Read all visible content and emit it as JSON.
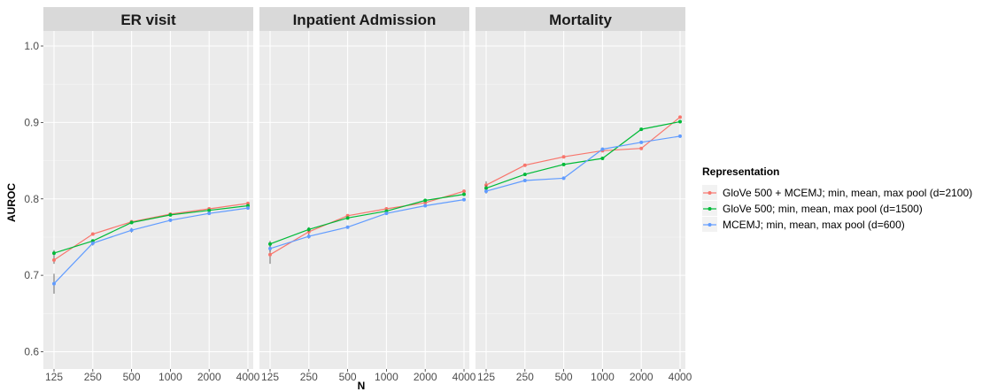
{
  "chart_data": {
    "type": "line",
    "ylabel": "AUROC",
    "xlabel": "N",
    "ylim": [
      0.6,
      1.0
    ],
    "yticks": [
      "0.6",
      "0.7",
      "0.8",
      "0.9",
      "1.0"
    ],
    "categories": [
      "125",
      "250",
      "500",
      "1000",
      "2000",
      "4000"
    ],
    "grid": true,
    "legend": {
      "title": "Representation",
      "placement": "right"
    },
    "series": [
      {
        "name": "GloVe 500 + MCEMJ; min, mean, max pool (d=2100)",
        "color": "#f8766d"
      },
      {
        "name": "GloVe 500; min, mean, max pool (d=1500)",
        "color": "#00ba38"
      },
      {
        "name": "MCEMJ; min, mean, max pool (d=600)",
        "color": "#619cff"
      }
    ],
    "panels": [
      {
        "title": "ER visit",
        "values": [
          [
            0.72,
            0.754,
            0.77,
            0.78,
            0.787,
            0.794
          ],
          [
            0.729,
            0.745,
            0.769,
            0.779,
            0.785,
            0.791
          ],
          [
            0.689,
            0.742,
            0.759,
            0.772,
            0.781,
            0.788
          ]
        ],
        "error": [
          [
            0.005,
            0.002,
            0.002,
            0.002,
            0.002,
            0.002
          ],
          [
            0.004,
            0.002,
            0.002,
            0.002,
            0.002,
            0.002
          ],
          [
            0.013,
            0.003,
            0.003,
            0.002,
            0.002,
            0.002
          ]
        ]
      },
      {
        "title": "Inpatient Admission",
        "values": [
          [
            0.727,
            0.757,
            0.778,
            0.787,
            0.795,
            0.81
          ],
          [
            0.741,
            0.76,
            0.775,
            0.784,
            0.798,
            0.806
          ],
          [
            0.735,
            0.751,
            0.763,
            0.781,
            0.791,
            0.799
          ]
        ],
        "error": [
          [
            0.012,
            0.003,
            0.002,
            0.002,
            0.002,
            0.002
          ],
          [
            0.004,
            0.003,
            0.002,
            0.002,
            0.002,
            0.002
          ],
          [
            0.004,
            0.003,
            0.002,
            0.002,
            0.002,
            0.002
          ]
        ]
      },
      {
        "title": "Mortality",
        "values": [
          [
            0.818,
            0.844,
            0.855,
            0.863,
            0.866,
            0.907
          ],
          [
            0.814,
            0.832,
            0.845,
            0.853,
            0.891,
            0.901
          ],
          [
            0.81,
            0.824,
            0.827,
            0.865,
            0.874,
            0.882
          ]
        ],
        "error": [
          [
            0.005,
            0.002,
            0.002,
            0.002,
            0.002,
            0.002
          ],
          [
            0.004,
            0.002,
            0.002,
            0.002,
            0.002,
            0.002
          ],
          [
            0.003,
            0.002,
            0.002,
            0.002,
            0.002,
            0.002
          ]
        ]
      }
    ]
  }
}
